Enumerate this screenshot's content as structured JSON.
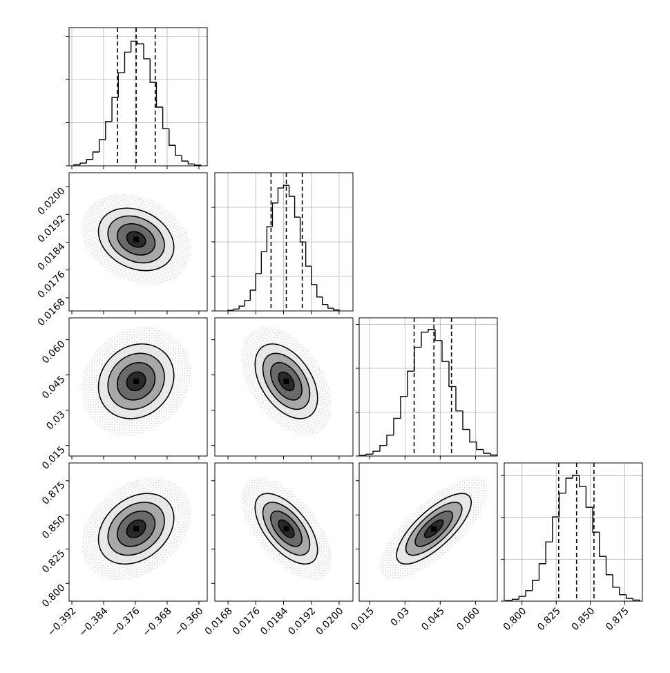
{
  "chart_data": {
    "type": "corner",
    "grid": true,
    "contour_levels": [
      0.5,
      1,
      1.5,
      2
    ],
    "params": [
      {
        "lim": [
          -0.3927,
          -0.3579
        ],
        "ticks": [
          {
            "value": -0.392,
            "label": "−0.392"
          },
          {
            "value": -0.384,
            "label": "−0.384"
          },
          {
            "value": -0.376,
            "label": "−0.376"
          },
          {
            "value": -0.368,
            "label": "−0.368"
          },
          {
            "value": -0.36,
            "label": "−0.360"
          }
        ],
        "quantiles": [
          -0.3805,
          -0.3758,
          -0.371
        ],
        "hist": {
          "bins": [
            -0.3915,
            -0.3899,
            -0.3883,
            -0.3867,
            -0.3851,
            -0.3835,
            -0.3819,
            -0.3803,
            -0.3787,
            -0.3771,
            -0.3755,
            -0.3739,
            -0.3723,
            -0.3707,
            -0.3691,
            -0.3675,
            -0.3659,
            -0.3643,
            -0.3627,
            -0.3611,
            -0.3595
          ],
          "counts": [
            24,
            63,
            148,
            320,
            606,
            1029,
            1584,
            2155,
            2633,
            2886,
            2824,
            2480,
            1935,
            1360,
            859,
            476,
            241,
            110,
            43,
            15
          ],
          "ylim": [
            0,
            3200
          ],
          "yticks": [
            0,
            1000,
            2000,
            3000
          ]
        }
      },
      {
        "lim": [
          0.01642,
          0.0204
        ],
        "ticks": [
          0.0168,
          0.0176,
          0.0184,
          0.0192,
          {
            "value": 0.02,
            "label": "0.0200"
          }
        ],
        "quantiles": [
          0.01804,
          0.01848,
          0.01894
        ],
        "hist": {
          "bins": [
            0.0168,
            0.01696,
            0.01712,
            0.01728,
            0.01744,
            0.0176,
            0.01776,
            0.01792,
            0.01808,
            0.01824,
            0.0184,
            0.01856,
            0.01872,
            0.01888,
            0.01904,
            0.0192,
            0.01936,
            0.01952,
            0.01968,
            0.01984,
            0.02
          ],
          "counts": [
            19,
            54,
            139,
            304,
            600,
            1082,
            1714,
            2438,
            3125,
            3558,
            3636,
            3318,
            2715,
            1996,
            1297,
            764,
            403,
            186,
            79,
            30
          ],
          "ylim": [
            0,
            4000
          ],
          "yticks": [
            0,
            1000,
            2000,
            3000
          ]
        }
      },
      {
        "lim": [
          0.0105,
          0.0693
        ],
        "ticks": [
          0.015,
          0.03,
          0.045,
          {
            "value": 0.06,
            "label": "0.060"
          }
        ],
        "quantiles": [
          0.0339,
          0.0423,
          0.0498
        ],
        "hist": {
          "bins": [
            0.0105,
            0.01344,
            0.01638,
            0.01932,
            0.02226,
            0.0252,
            0.02814,
            0.03108,
            0.03402,
            0.03696,
            0.0399,
            0.04284,
            0.04578,
            0.04872,
            0.05166,
            0.0546,
            0.05754,
            0.06048,
            0.06342,
            0.06636,
            0.0693
          ],
          "counts": [
            15,
            43,
            110,
            241,
            476,
            859,
            1360,
            1935,
            2480,
            2824,
            2886,
            2633,
            2155,
            1584,
            1029,
            606,
            320,
            148,
            63,
            24
          ],
          "ylim": [
            0,
            3150
          ],
          "yticks": [
            0,
            1000,
            2000,
            3000
          ]
        }
      },
      {
        "lim": [
          0.787,
          0.888
        ],
        "ticks": [
          {
            "value": 0.8,
            "label": "0.800"
          },
          0.825,
          {
            "value": 0.85,
            "label": "0.850"
          },
          0.875
        ],
        "quantiles": [
          0.8268,
          0.8399,
          0.8526
        ],
        "hist": {
          "bins": [
            0.788,
            0.7929,
            0.7978,
            0.8027,
            0.8076,
            0.8125,
            0.8174,
            0.8223,
            0.8272,
            0.8321,
            0.837,
            0.8419,
            0.8468,
            0.8517,
            0.8566,
            0.8615,
            0.8664,
            0.8713,
            0.8762,
            0.8811,
            0.886
          ],
          "counts": [
            16,
            45,
            114,
            251,
            495,
            893,
            1414,
            2012,
            2579,
            2937,
            3001,
            2738,
            2241,
            1647,
            1070,
            630,
            333,
            154,
            66,
            25
          ],
          "ylim": [
            0,
            3300
          ],
          "yticks": [
            0,
            1000,
            2000,
            3000
          ]
        }
      }
    ],
    "correlations": [
      {
        "pair": [
          1,
          0
        ],
        "r": -0.25
      },
      {
        "pair": [
          2,
          0
        ],
        "r": 0.15
      },
      {
        "pair": [
          2,
          1
        ],
        "r": -0.45
      },
      {
        "pair": [
          3,
          0
        ],
        "r": 0.3
      },
      {
        "pair": [
          3,
          1
        ],
        "r": -0.6
      },
      {
        "pair": [
          3,
          2
        ],
        "r": 0.75
      }
    ]
  }
}
